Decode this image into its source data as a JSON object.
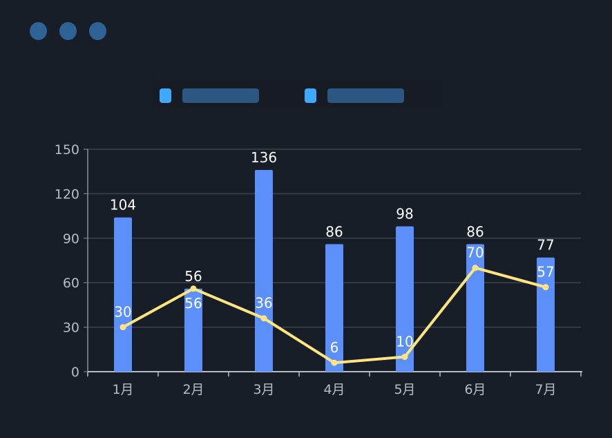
{
  "window": {
    "dots": 3,
    "dot_color": "#2e6396"
  },
  "legend": {
    "items": [
      {
        "color": "#40a9ff"
      },
      {
        "color": "#40a9ff"
      }
    ]
  },
  "chart_data": {
    "type": "bar+line",
    "categories": [
      "1月",
      "2月",
      "3月",
      "4月",
      "5月",
      "6月",
      "7月"
    ],
    "series": [
      {
        "type": "bar",
        "values": [
          104,
          56,
          136,
          86,
          98,
          86,
          77
        ],
        "color": "#5b8ff9"
      },
      {
        "type": "line",
        "values": [
          30,
          56,
          36,
          6,
          10,
          70,
          57
        ],
        "color": "#ffe580"
      }
    ],
    "ylim": [
      0,
      150
    ],
    "yticks": [
      0,
      30,
      60,
      90,
      120,
      150
    ],
    "grid": true,
    "legend_position": "top"
  }
}
